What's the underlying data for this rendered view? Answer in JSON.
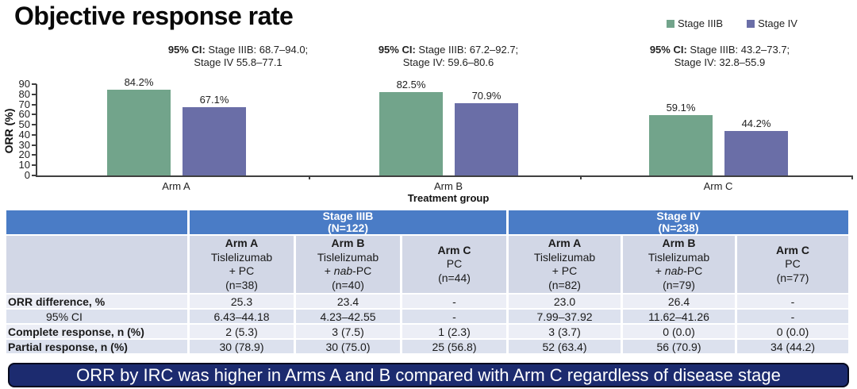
{
  "title": "Objective response rate",
  "legend": [
    {
      "label": "Stage IIIB",
      "color": "#72A48B"
    },
    {
      "label": "Stage IV",
      "color": "#6A6EA7"
    }
  ],
  "annotations": [
    {
      "bold": "95% CI:",
      "rest": " Stage IIIB: 68.7–94.0;",
      "line2": "Stage IV 55.8–77.1"
    },
    {
      "bold": "95% CI:",
      "rest": " Stage IIIB: 67.2–92.7;",
      "line2": "Stage IV: 59.6–80.6"
    },
    {
      "bold": "95% CI:",
      "rest": " Stage IIIB: 43.2–73.7;",
      "line2": "Stage IV: 32.8–55.9"
    }
  ],
  "chart_data": {
    "type": "bar",
    "categories": [
      "Arm A",
      "Arm B",
      "Arm C"
    ],
    "series": [
      {
        "name": "Stage IIIB",
        "color": "#72A48B",
        "values": [
          84.2,
          82.5,
          59.1
        ]
      },
      {
        "name": "Stage IV",
        "color": "#6A6EA7",
        "values": [
          67.1,
          70.9,
          44.2
        ]
      }
    ],
    "value_label_suffix": "%",
    "ylabel": "ORR (%)",
    "xlabel": "Treatment group",
    "ylim": [
      0,
      90
    ],
    "ytick_step": 10,
    "grid": false,
    "legend_position": "top-right"
  },
  "table": {
    "stage_groups": [
      {
        "title": "Stage IIIB",
        "n": "(N=122)"
      },
      {
        "title": "Stage IV",
        "n": "(N=238)"
      }
    ],
    "arms": [
      {
        "lines": [
          [
            {
              "t": "Arm A",
              "b": 1
            }
          ],
          [
            {
              "t": "Tislelizumab"
            }
          ],
          [
            {
              "t": "+ PC"
            }
          ],
          [
            {
              "t": "(n=38)"
            }
          ]
        ]
      },
      {
        "lines": [
          [
            {
              "t": "Arm B",
              "b": 1
            }
          ],
          [
            {
              "t": "Tislelizumab"
            }
          ],
          [
            {
              "t": "+ "
            },
            {
              "t": "nab",
              "i": 1
            },
            {
              "t": "-PC"
            }
          ],
          [
            {
              "t": "(n=40)"
            }
          ]
        ]
      },
      {
        "lines": [
          [
            {
              "t": "Arm C",
              "b": 1
            }
          ],
          [
            {
              "t": "PC"
            }
          ],
          [
            {
              "t": "(n=44)"
            }
          ]
        ]
      },
      {
        "lines": [
          [
            {
              "t": "Arm A",
              "b": 1
            }
          ],
          [
            {
              "t": "Tislelizumab"
            }
          ],
          [
            {
              "t": "+ PC"
            }
          ],
          [
            {
              "t": "(n=82)"
            }
          ]
        ]
      },
      {
        "lines": [
          [
            {
              "t": "Arm B",
              "b": 1
            }
          ],
          [
            {
              "t": "Tislelizumab"
            }
          ],
          [
            {
              "t": "+ "
            },
            {
              "t": "nab",
              "i": 1
            },
            {
              "t": "-PC"
            }
          ],
          [
            {
              "t": "(n=79)"
            }
          ]
        ]
      },
      {
        "lines": [
          [
            {
              "t": "Arm C",
              "b": 1
            }
          ],
          [
            {
              "t": "PC"
            }
          ],
          [
            {
              "t": "(n=77)"
            }
          ]
        ]
      }
    ],
    "rows": [
      {
        "label": "ORR difference, %",
        "bold": true,
        "indent": false,
        "values": [
          "25.3",
          "23.4",
          "-",
          "23.0",
          "26.4",
          "-"
        ]
      },
      {
        "label": "95% CI",
        "bold": false,
        "indent": true,
        "values": [
          "6.43–44.18",
          "4.23–42.55",
          "-",
          "7.99–37.92",
          "11.62–41.26",
          "-"
        ]
      },
      {
        "label": "Complete response, n (%)",
        "bold": true,
        "indent": false,
        "values": [
          "2 (5.3)",
          "3 (7.5)",
          "1 (2.3)",
          "3 (3.7)",
          "0 (0.0)",
          "0 (0.0)"
        ]
      },
      {
        "label": "Partial response, n (%)",
        "bold": true,
        "indent": false,
        "values": [
          "30 (78.9)",
          "30 (75.0)",
          "25 (56.8)",
          "52 (63.4)",
          "56 (70.9)",
          "34 (44.2)"
        ]
      }
    ]
  },
  "banner": {
    "text": "ORR by IRC was higher in Arms A and B compared with Arm C regardless of disease stage"
  }
}
